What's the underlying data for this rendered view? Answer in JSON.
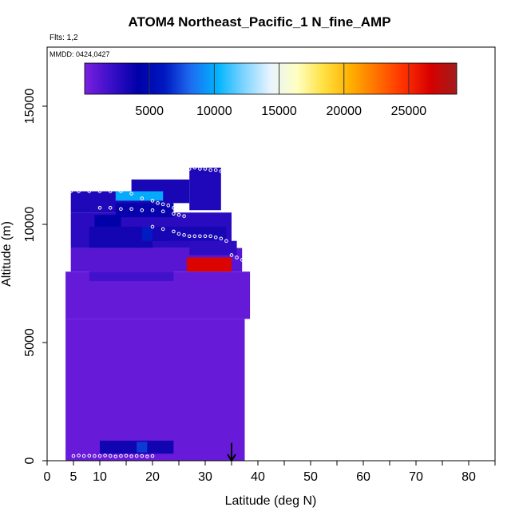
{
  "title": "ATOM4 Northeast_Pacific_1 N_fine_AMP",
  "flights_label": "Flts: 1,2",
  "mmdd_label": "MMDD: 0424,0427",
  "colors": {
    "background": "#ffffff",
    "plot_border": "#000000",
    "flight_points": "#ffffff",
    "arrow": "#000000",
    "colormap": [
      "#7b1fe0",
      "#3a0fc8",
      "#0000a8",
      "#0018c0",
      "#1e6cf0",
      "#00b4ff",
      "#7fd4ff",
      "#e8f4ff",
      "#ffffc0",
      "#ffe040",
      "#ffb000",
      "#ff7000",
      "#ff3000",
      "#d80000",
      "#a01c1c"
    ]
  },
  "colorbar": {
    "min": 0,
    "max": 28700,
    "ticks": [
      5000,
      10000,
      15000,
      20000,
      25000
    ],
    "tick_labels": [
      "5000",
      "10000",
      "15000",
      "20000",
      "25000"
    ]
  },
  "chart_data": {
    "type": "heatmap",
    "title": "ATOM4 Northeast_Pacific_1 N_fine_AMP",
    "xlabel": "Latitude (deg N)",
    "ylabel": "Altitude (m)",
    "xlim": [
      0,
      85
    ],
    "ylim": [
      0,
      17500
    ],
    "x_ticks": [
      0,
      5,
      10,
      20,
      30,
      40,
      50,
      60,
      70,
      80
    ],
    "x_tick_labels": [
      "0",
      "5",
      "10",
      "20",
      "30",
      "40",
      "50",
      "60",
      "70",
      "80"
    ],
    "x_minor_ticks": [
      15,
      25,
      35,
      45,
      55,
      65,
      75,
      85
    ],
    "y_ticks": [
      0,
      5000,
      10000,
      15000
    ],
    "y_tick_labels": [
      "0",
      "5000",
      "10000",
      "15000"
    ],
    "grid": false,
    "legend": "horizontal colorbar, top",
    "cell_value_range": [
      0,
      28700
    ],
    "cells": [
      {
        "x0": 3.5,
        "x1": 37.5,
        "y0": 0,
        "y1": 6000,
        "v": 600
      },
      {
        "x0": 3.5,
        "x1": 38.5,
        "y0": 6000,
        "y1": 8000,
        "v": 700
      },
      {
        "x0": 4.5,
        "x1": 37,
        "y0": 8000,
        "y1": 9000,
        "v": 1100
      },
      {
        "x0": 4.5,
        "x1": 35,
        "y0": 9000,
        "y1": 10500,
        "v": 2600
      },
      {
        "x0": 4.5,
        "x1": 20,
        "y0": 10500,
        "y1": 11400,
        "v": 3000
      },
      {
        "x0": 16,
        "x1": 27,
        "y0": 10900,
        "y1": 11900,
        "v": 3200
      },
      {
        "x0": 27,
        "x1": 33,
        "y0": 10600,
        "y1": 12400,
        "v": 3000
      },
      {
        "x0": 13,
        "x1": 22,
        "y0": 11000,
        "y1": 11400,
        "v": 10000
      },
      {
        "x0": 13,
        "x1": 24,
        "y0": 10300,
        "y1": 10900,
        "v": 3800
      },
      {
        "x0": 8,
        "x1": 20,
        "y0": 9000,
        "y1": 9900,
        "v": 3400
      },
      {
        "x0": 18,
        "x1": 23,
        "y0": 9300,
        "y1": 9900,
        "v": 6200
      },
      {
        "x0": 9,
        "x1": 14,
        "y0": 9900,
        "y1": 10400,
        "v": 4200
      },
      {
        "x0": 20,
        "x1": 34,
        "y0": 9300,
        "y1": 9900,
        "v": 3300
      },
      {
        "x0": 27,
        "x1": 36,
        "y0": 8700,
        "y1": 9300,
        "v": 2500
      },
      {
        "x0": 26.5,
        "x1": 35,
        "y0": 8000,
        "y1": 8600,
        "v": 26500
      },
      {
        "x0": 8,
        "x1": 24,
        "y0": 7600,
        "y1": 8000,
        "v": 1800
      },
      {
        "x0": 10,
        "x1": 24,
        "y0": 300,
        "y1": 850,
        "v": 3500
      },
      {
        "x0": 17,
        "x1": 19,
        "y0": 350,
        "y1": 800,
        "v": 7000
      }
    ],
    "flight_tracks": [
      {
        "x": [
          4.5,
          6,
          8,
          10,
          12,
          14,
          16,
          18,
          20,
          21,
          22,
          23,
          24,
          25
        ],
        "y": [
          11400,
          11400,
          11400,
          11400,
          11400,
          11400,
          11300,
          11100,
          11000,
          10900,
          10850,
          10800,
          10700,
          10650
        ]
      },
      {
        "x": [
          27,
          28,
          29,
          30,
          31,
          32,
          33
        ],
        "y": [
          12350,
          12400,
          12350,
          12350,
          12300,
          12300,
          12250
        ]
      },
      {
        "x": [
          10,
          12,
          14,
          16,
          18,
          20,
          22,
          24,
          25,
          26
        ],
        "y": [
          10700,
          10700,
          10650,
          10650,
          10600,
          10600,
          10550,
          10450,
          10400,
          10350
        ]
      },
      {
        "x": [
          20,
          22,
          24,
          25,
          26,
          27,
          28,
          29,
          30,
          31,
          32,
          33,
          34
        ],
        "y": [
          9900,
          9800,
          9700,
          9600,
          9550,
          9500,
          9500,
          9500,
          9500,
          9500,
          9450,
          9400,
          9300
        ]
      },
      {
        "x": [
          35,
          36,
          37
        ],
        "y": [
          8700,
          8600,
          8500
        ]
      },
      {
        "x": [
          5,
          6,
          7,
          8,
          9,
          10,
          11,
          12,
          13,
          14,
          15,
          16,
          17,
          18,
          19,
          20
        ],
        "y": [
          200,
          220,
          200,
          210,
          200,
          200,
          220,
          200,
          180,
          200,
          210,
          190,
          200,
          200,
          180,
          200
        ]
      }
    ],
    "annotations": [
      {
        "type": "arrow",
        "x": 35,
        "y_from": 750,
        "y_to": 0
      }
    ]
  }
}
